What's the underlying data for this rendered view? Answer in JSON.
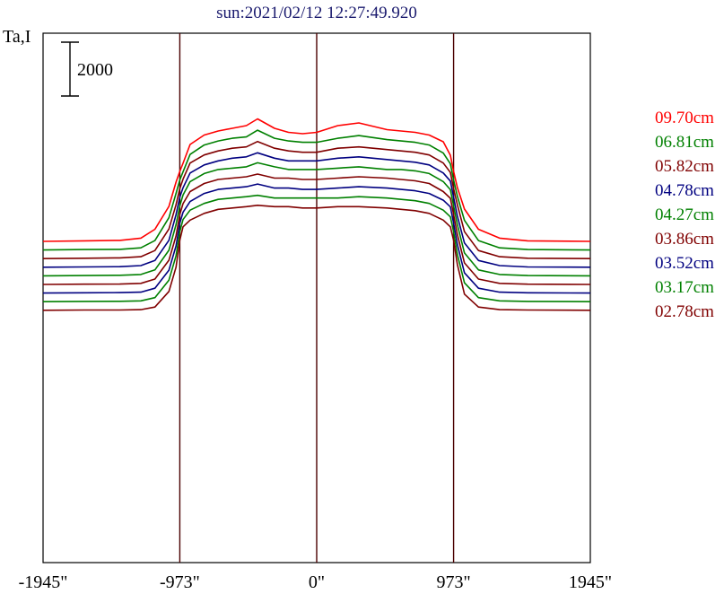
{
  "chart_data": {
    "type": "line",
    "title": "sun:2021/02/12 12:27:49.920",
    "title_color": "#1a1a6e",
    "ylabel": "Ta,I",
    "scale_bar_label": "2000",
    "scale_bar_value": 2000,
    "xlim": [
      -1945,
      1945
    ],
    "x_ticks": [
      {
        "value": -1945,
        "label": "-1945\""
      },
      {
        "value": -973,
        "label": "-973\""
      },
      {
        "value": 0,
        "label": "0\""
      },
      {
        "value": 973,
        "label": "973\""
      },
      {
        "value": 1945,
        "label": "1945\""
      }
    ],
    "vertical_lines": [
      -973,
      0,
      973
    ],
    "grid": false,
    "legend_position": "right",
    "x": [
      -1945,
      -1650,
      -1400,
      -1250,
      -1150,
      -1050,
      -1000,
      -973,
      -950,
      -900,
      -800,
      -700,
      -600,
      -500,
      -420,
      -300,
      -200,
      -100,
      0,
      150,
      300,
      500,
      600,
      700,
      800,
      900,
      950,
      973,
      1000,
      1050,
      1150,
      1300,
      1500,
      1945
    ],
    "series": [
      {
        "name": "09.70cm",
        "color": "#ff0000",
        "offset": 0,
        "values": [
          0,
          20,
          35,
          120,
          450,
          1300,
          2200,
          2600,
          2900,
          3600,
          3950,
          4100,
          4200,
          4300,
          4550,
          4200,
          4050,
          4000,
          4050,
          4300,
          4400,
          4150,
          4100,
          4050,
          3950,
          3700,
          3200,
          2600,
          2000,
          1200,
          450,
          120,
          20,
          0
        ]
      },
      {
        "name": "06.81cm",
        "color": "#008000",
        "offset": -320,
        "values": [
          0,
          15,
          25,
          80,
          350,
          1200,
          2100,
          2600,
          2900,
          3550,
          3900,
          4050,
          4150,
          4200,
          4450,
          4150,
          4050,
          4000,
          4000,
          4150,
          4250,
          4100,
          4050,
          4000,
          3900,
          3600,
          3200,
          2600,
          2000,
          1100,
          350,
          80,
          15,
          0
        ]
      },
      {
        "name": "05.82cm",
        "color": "#800000",
        "offset": -640,
        "values": [
          0,
          15,
          25,
          70,
          300,
          1100,
          2000,
          2600,
          2950,
          3550,
          3850,
          4000,
          4100,
          4150,
          4350,
          4100,
          4000,
          3950,
          3950,
          4100,
          4150,
          4050,
          4000,
          3950,
          3850,
          3550,
          3200,
          2600,
          2000,
          1000,
          300,
          70,
          15,
          0
        ]
      },
      {
        "name": "04.78cm",
        "color": "#000080",
        "offset": -960,
        "values": [
          0,
          10,
          20,
          60,
          250,
          1000,
          1950,
          2600,
          2950,
          3500,
          3800,
          3950,
          4050,
          4100,
          4250,
          4050,
          3950,
          3950,
          3950,
          4050,
          4100,
          4000,
          3950,
          3900,
          3800,
          3500,
          3200,
          2600,
          1900,
          900,
          250,
          60,
          10,
          0
        ]
      },
      {
        "name": "04.27cm",
        "color": "#008000",
        "offset": -1280,
        "values": [
          0,
          10,
          20,
          50,
          220,
          950,
          1900,
          2600,
          3000,
          3500,
          3800,
          3950,
          4000,
          4050,
          4200,
          4050,
          3950,
          3950,
          3950,
          4000,
          4050,
          3950,
          3950,
          3900,
          3800,
          3500,
          3200,
          2600,
          1900,
          850,
          220,
          50,
          10,
          0
        ]
      },
      {
        "name": "03.86cm",
        "color": "#800000",
        "offset": -1600,
        "values": [
          0,
          10,
          15,
          40,
          200,
          900,
          1800,
          2600,
          3000,
          3450,
          3750,
          3900,
          3950,
          4000,
          4100,
          3950,
          3950,
          3900,
          3900,
          3950,
          4000,
          3950,
          3900,
          3850,
          3750,
          3450,
          3200,
          2600,
          1850,
          800,
          200,
          40,
          10,
          0
        ]
      },
      {
        "name": "03.52cm",
        "color": "#000080",
        "offset": -1920,
        "values": [
          0,
          10,
          15,
          35,
          180,
          850,
          1750,
          2600,
          3000,
          3400,
          3700,
          3850,
          3900,
          3950,
          4050,
          3900,
          3900,
          3850,
          3850,
          3900,
          3950,
          3900,
          3850,
          3800,
          3700,
          3450,
          3200,
          2600,
          1800,
          750,
          180,
          35,
          10,
          0
        ]
      },
      {
        "name": "03.17cm",
        "color": "#008000",
        "offset": -2240,
        "values": [
          0,
          10,
          15,
          30,
          150,
          800,
          1700,
          2600,
          3050,
          3400,
          3650,
          3800,
          3850,
          3900,
          3950,
          3850,
          3850,
          3850,
          3850,
          3850,
          3900,
          3850,
          3800,
          3750,
          3650,
          3400,
          3150,
          2600,
          1750,
          700,
          150,
          30,
          10,
          0
        ]
      },
      {
        "name": "02.78cm",
        "color": "#800000",
        "offset": -2560,
        "values": [
          0,
          10,
          10,
          25,
          120,
          700,
          1600,
          2600,
          3100,
          3350,
          3600,
          3750,
          3800,
          3850,
          3900,
          3850,
          3850,
          3800,
          3800,
          3850,
          3850,
          3800,
          3750,
          3700,
          3600,
          3350,
          3100,
          2600,
          1700,
          600,
          120,
          25,
          10,
          0
        ]
      }
    ]
  }
}
